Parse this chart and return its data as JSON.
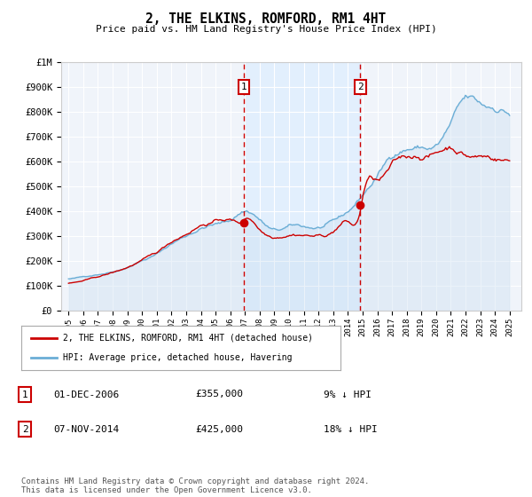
{
  "title": "2, THE ELKINS, ROMFORD, RM1 4HT",
  "subtitle": "Price paid vs. HM Land Registry's House Price Index (HPI)",
  "hpi_color": "#6baed6",
  "hpi_fill_color": "#c6dbef",
  "price_color": "#cc0000",
  "vline_color": "#cc0000",
  "shade_color": "#ddeeff",
  "transaction1_x": 2006.92,
  "transaction1_price": 355000,
  "transaction1_date": "01-DEC-2006",
  "transaction1_hpi_pct": "9%",
  "transaction2_x": 2014.85,
  "transaction2_price": 425000,
  "transaction2_date": "07-NOV-2014",
  "transaction2_hpi_pct": "18%",
  "legend_line1": "2, THE ELKINS, ROMFORD, RM1 4HT (detached house)",
  "legend_line2": "HPI: Average price, detached house, Havering",
  "footer": "Contains HM Land Registry data © Crown copyright and database right 2024.\nThis data is licensed under the Open Government Licence v3.0.",
  "yticks": [
    0,
    100000,
    200000,
    300000,
    400000,
    500000,
    600000,
    700000,
    800000,
    900000,
    1000000
  ],
  "ytick_labels": [
    "£0",
    "£100K",
    "£200K",
    "£300K",
    "£400K",
    "£500K",
    "£600K",
    "£700K",
    "£800K",
    "£900K",
    "£1M"
  ],
  "xlim_left": 1994.5,
  "xlim_right": 2025.8,
  "ylim_top": 1000000
}
